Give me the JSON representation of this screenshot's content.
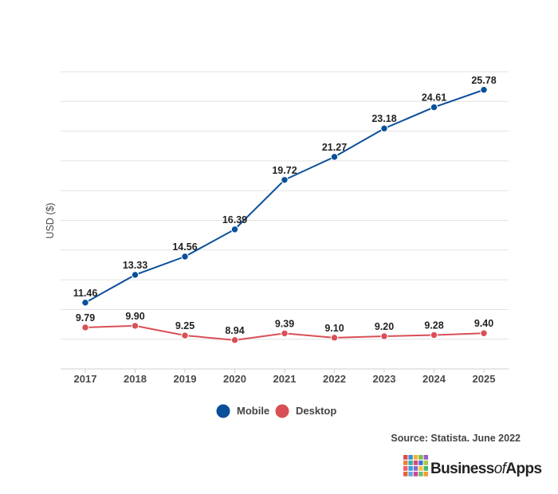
{
  "chart_data": {
    "type": "line",
    "title": "",
    "xlabel": "",
    "ylabel": "USD ($)",
    "categories": [
      "2017",
      "2018",
      "2019",
      "2020",
      "2021",
      "2022",
      "2023",
      "2024",
      "2025"
    ],
    "ylim": [
      7,
      27
    ],
    "grid": true,
    "legend_position": "bottom",
    "series": [
      {
        "name": "Mobile",
        "color": "#0a4f9a",
        "values": [
          11.46,
          13.33,
          14.56,
          16.39,
          19.72,
          21.27,
          23.18,
          24.61,
          25.78
        ],
        "labels": [
          "11.46",
          "13.33",
          "14.56",
          "16.39",
          "19.72",
          "21.27",
          "23.18",
          "24.61",
          "25.78"
        ]
      },
      {
        "name": "Desktop",
        "color": "#d94f55",
        "values": [
          9.79,
          9.9,
          9.25,
          8.94,
          9.39,
          9.1,
          9.2,
          9.28,
          9.4
        ],
        "labels": [
          "9.79",
          "9.90",
          "9.25",
          "8.94",
          "9.39",
          "9.10",
          "9.20",
          "9.28",
          "9.40"
        ]
      }
    ]
  },
  "source": "Source: Statista. June 2022",
  "logo": {
    "text_pre": "Business",
    "text_of": "of",
    "text_post": "Apps",
    "tile_colors": [
      "#e04a4a",
      "#3a8fd4",
      "#f2b233",
      "#7bbf4c",
      "#9b5fc0",
      "#f07f3c",
      "#2fb3a6",
      "#d9487a",
      "#4b6fd1",
      "#a7c94a",
      "#f25d6a",
      "#35a0e0",
      "#8a6acb",
      "#f6c23f",
      "#47b86b",
      "#e2663f",
      "#5fa9d8",
      "#c8489a",
      "#6dc071",
      "#f09b3a"
    ]
  }
}
